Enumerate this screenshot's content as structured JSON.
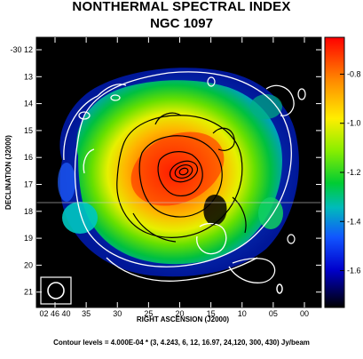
{
  "chart_data": {
    "type": "heatmap",
    "title": "NONTHERMAL SPECTRAL INDEX",
    "subtitle": "NGC 1097",
    "xlabel": "RIGHT ASCENSION (J2000)",
    "ylabel": "DECLINATION (J2000)",
    "x_ticks": [
      "02 46 40",
      "35",
      "30",
      "25",
      "20",
      "15",
      "10",
      "05",
      "00"
    ],
    "y_ticks": [
      "-30 12",
      "13",
      "14",
      "15",
      "16",
      "17",
      "18",
      "19",
      "20",
      "21"
    ],
    "colorbar": {
      "ticks": [
        "-0.8",
        "-1.0",
        "-1.2",
        "-1.4",
        "-1.6"
      ],
      "tick_values": [
        -0.8,
        -1.0,
        -1.2,
        -1.4,
        -1.6
      ],
      "range": [
        -1.75,
        -0.65
      ],
      "colors": [
        "#ff0000",
        "#ff8a00",
        "#ffee00",
        "#88ee00",
        "#00cc33",
        "#00bbbb",
        "#1155ff",
        "#0000cc",
        "#000000"
      ]
    },
    "caption": "Contour levels = 4.000E-04 * (3, 4.243, 6, 12, 16.97, 24,120, 300, 430) Jy/beam",
    "contour_levels": [
      3,
      4.243,
      6,
      12,
      16.97,
      24,
      120,
      300,
      430
    ],
    "contour_unit_factor": "4.000E-04"
  }
}
